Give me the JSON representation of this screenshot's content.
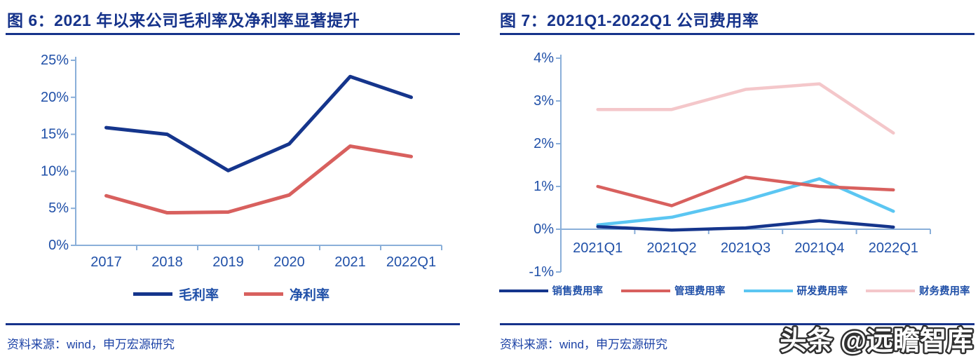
{
  "page": {
    "background": "#ffffff",
    "watermark": "头条 @远瞻智库"
  },
  "colors": {
    "title_accent": "#16338B",
    "axis_line": "#8AAFD9",
    "tick_label": "#2050A8",
    "source_text": "#1D43A6",
    "watermark_fill": "#ffffff",
    "watermark_stroke": "#303030"
  },
  "figures": [
    {
      "title": "图 6：2021 年以来公司毛利率及净利率显著提升",
      "source": "资料来源：wind，申万宏源研究"
    },
    {
      "title": "图 7：2021Q1-2022Q1 公司费用率",
      "source": "资料来源：wind，申万宏源研究"
    }
  ],
  "chart_data": [
    {
      "type": "line",
      "title": "2021 年以来公司毛利率及净利率显著提升",
      "categories": [
        "2017",
        "2018",
        "2019",
        "2020",
        "2021",
        "2022Q1"
      ],
      "series": [
        {
          "name": "毛利率",
          "color": "#15358C",
          "values": [
            15.9,
            15.0,
            10.1,
            13.7,
            22.8,
            20.0
          ]
        },
        {
          "name": "净利率",
          "color": "#D8605E",
          "values": [
            6.7,
            4.4,
            4.5,
            6.8,
            13.4,
            12.0
          ]
        }
      ],
      "xlabel": "",
      "ylabel": "",
      "ylim": [
        0,
        25
      ],
      "ystep": 5,
      "ytick_suffix": "%",
      "grid": false,
      "legend_position": "bottom"
    },
    {
      "type": "line",
      "title": "2021Q1-2022Q1 公司费用率",
      "categories": [
        "2021Q1",
        "2021Q2",
        "2021Q3",
        "2021Q4",
        "2022Q1"
      ],
      "series": [
        {
          "name": "销售费用率",
          "color": "#15358C",
          "values": [
            0.06,
            -0.02,
            0.03,
            0.2,
            0.05
          ]
        },
        {
          "name": "管理费用率",
          "color": "#D8605E",
          "values": [
            1.0,
            0.55,
            1.22,
            1.0,
            0.92
          ]
        },
        {
          "name": "研发费用率",
          "color": "#5BC6F2",
          "values": [
            0.1,
            0.28,
            0.68,
            1.18,
            0.42
          ]
        },
        {
          "name": "财务费用率",
          "color": "#F4C7CA",
          "values": [
            2.8,
            2.8,
            3.27,
            3.4,
            2.25
          ]
        }
      ],
      "xlabel": "",
      "ylabel": "",
      "ylim": [
        -1,
        4
      ],
      "ystep": 1,
      "ytick_suffix": "%",
      "grid": false,
      "legend_position": "bottom"
    }
  ]
}
